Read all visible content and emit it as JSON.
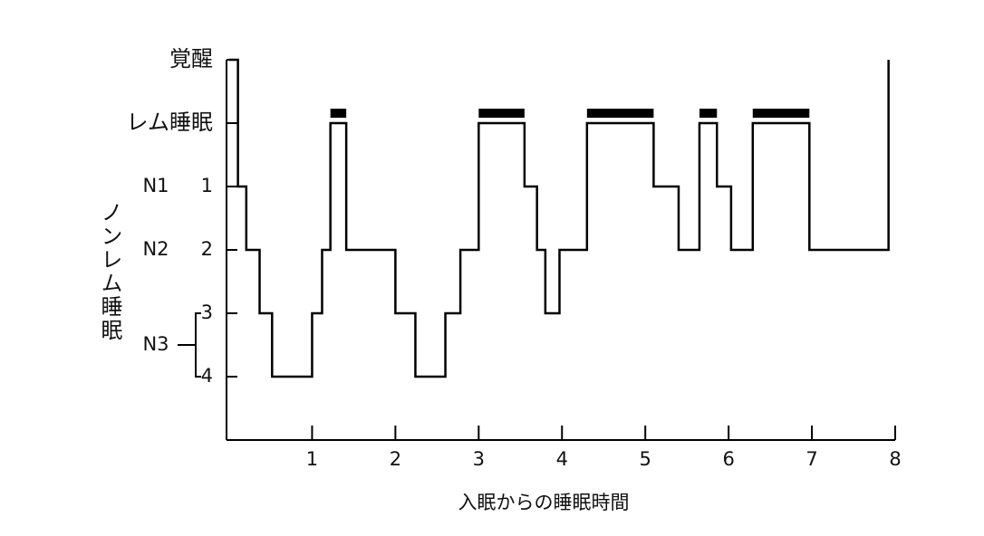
{
  "chart_data": {
    "type": "step",
    "x_label": "入眠からの睡眠時間",
    "nonrem_label": "ノンレム睡眠",
    "x": [
      0,
      0.11,
      0.21,
      0.37,
      0.52,
      1.0,
      1.12,
      1.22,
      1.41,
      2.0,
      2.24,
      2.6,
      2.78,
      3.0,
      3.55,
      3.7,
      3.8,
      3.97,
      4.3,
      5.1,
      5.4,
      5.65,
      5.86,
      6.03,
      6.29,
      6.97,
      7.92
    ],
    "values": [
      -1,
      1,
      2,
      3,
      4,
      3,
      2,
      0,
      2,
      3,
      4,
      3,
      2,
      0,
      1,
      2,
      3,
      2,
      0,
      1,
      2,
      0,
      1,
      2,
      0,
      2,
      -1
    ],
    "color": "#000000",
    "xlim": [
      0,
      8
    ],
    "xticks": [
      1,
      2,
      3,
      4,
      5,
      6,
      7,
      8
    ],
    "ylim": [
      5,
      -1
    ],
    "yticks": [
      {
        "value": -1,
        "label": "覚醒"
      },
      {
        "value": 0,
        "label": "レム睡眠"
      },
      1,
      2,
      3,
      4
    ],
    "stage_labels": [
      {
        "value": 1,
        "label": "N1"
      },
      {
        "value": 2,
        "label": "N2"
      },
      {
        "value": 3.5,
        "label": "N3"
      }
    ]
  }
}
